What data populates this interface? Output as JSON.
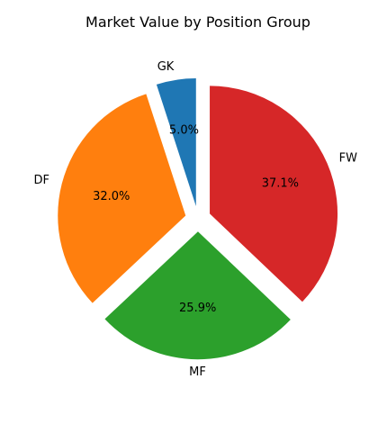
{
  "chart_data": {
    "type": "pie",
    "title": "Market Value by Position Group",
    "start_angle_deg": 90,
    "direction": "counterclockwise",
    "slices": [
      {
        "label": "GK",
        "value": 5.0,
        "pct_label": "5.0%",
        "color": "#1f77b4",
        "exploded": true
      },
      {
        "label": "DF",
        "value": 32.0,
        "pct_label": "32.0%",
        "color": "#ff7f0e",
        "exploded": true
      },
      {
        "label": "MF",
        "value": 25.9,
        "pct_label": "25.9%",
        "color": "#2ca02c",
        "exploded": true
      },
      {
        "label": "FW",
        "value": 37.1,
        "pct_label": "37.1%",
        "color": "#d62728",
        "exploded": true
      }
    ],
    "legend": "none"
  }
}
